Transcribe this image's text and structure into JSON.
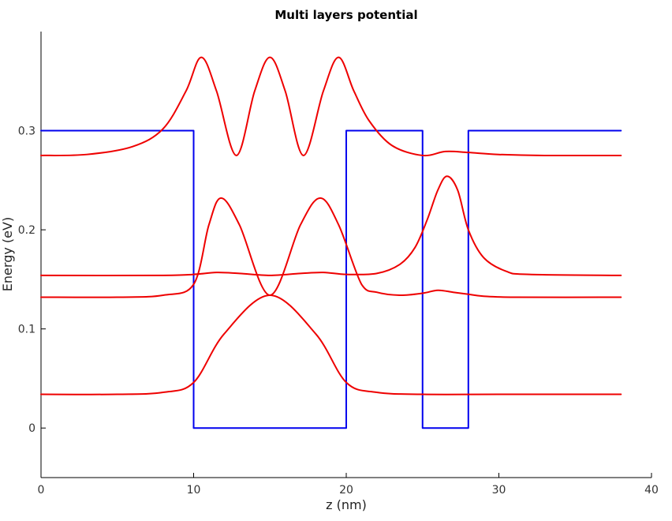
{
  "chart_data": {
    "type": "line",
    "title": "Multi layers potential",
    "xlabel": "z (nm)",
    "ylabel": "Energy (eV)",
    "xlim": [
      0,
      40
    ],
    "ylim": [
      -0.05,
      0.4
    ],
    "xticks": [
      "0",
      "10",
      "20",
      "30",
      "40"
    ],
    "yticks": [
      "0",
      "0.1",
      "0.2",
      "0.3"
    ],
    "xtick_values": [
      0,
      10,
      20,
      30,
      40
    ],
    "ytick_values": [
      0,
      0.1,
      0.2,
      0.3
    ],
    "grid": false,
    "series": [
      {
        "color": "#0000ee",
        "x": [
          0,
          10,
          10,
          20,
          20,
          25,
          25,
          28,
          28,
          38
        ],
        "y": [
          0.3,
          0.3,
          0,
          0,
          0.3,
          0.3,
          0,
          0,
          0.3,
          0.3
        ]
      },
      {
        "color": "#ee0000",
        "x": [
          0,
          5,
          8,
          10,
          12,
          15,
          18,
          20,
          22,
          25,
          30,
          38
        ],
        "y": [
          0.034,
          0.034,
          0.036,
          0.046,
          0.095,
          0.134,
          0.095,
          0.046,
          0.036,
          0.034,
          0.034,
          0.034
        ]
      },
      {
        "color": "#ee0000",
        "x": [
          0,
          5,
          8,
          10,
          11,
          11.8,
          13,
          15,
          17,
          18.3,
          19.5,
          21,
          22,
          23.5,
          25,
          26,
          27,
          28,
          29,
          31,
          38
        ],
        "y": [
          0.132,
          0.132,
          0.134,
          0.145,
          0.205,
          0.232,
          0.205,
          0.134,
          0.205,
          0.232,
          0.205,
          0.145,
          0.137,
          0.134,
          0.136,
          0.139,
          0.137,
          0.135,
          0.133,
          0.132,
          0.132
        ]
      },
      {
        "color": "#ee0000",
        "x": [
          0,
          8,
          10,
          11.5,
          13,
          15,
          17,
          18.5,
          20,
          22,
          23.5,
          24.5,
          25.3,
          26,
          26.6,
          27.3,
          28,
          29,
          30.5,
          32,
          38
        ],
        "y": [
          0.154,
          0.154,
          0.155,
          0.157,
          0.156,
          0.154,
          0.156,
          0.157,
          0.155,
          0.156,
          0.165,
          0.182,
          0.21,
          0.24,
          0.254,
          0.24,
          0.2,
          0.172,
          0.158,
          0.155,
          0.154
        ]
      },
      {
        "color": "#ee0000",
        "x": [
          0,
          3,
          6,
          8,
          9.5,
          10.5,
          11.5,
          12.8,
          14,
          15,
          16,
          17.2,
          18.5,
          19.5,
          20.5,
          21.5,
          23,
          25,
          26.5,
          28,
          30,
          33,
          38
        ],
        "y": [
          0.275,
          0.276,
          0.284,
          0.302,
          0.34,
          0.374,
          0.34,
          0.275,
          0.34,
          0.374,
          0.34,
          0.275,
          0.34,
          0.374,
          0.34,
          0.31,
          0.285,
          0.275,
          0.279,
          0.278,
          0.276,
          0.275,
          0.275
        ]
      }
    ]
  }
}
